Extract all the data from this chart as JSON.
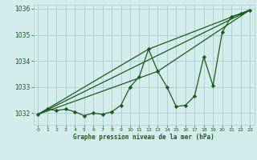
{
  "title": "Graphe pression niveau de la mer (hPa)",
  "bg_color": "#d4ecec",
  "grid_color": "#aacece",
  "line_color": "#1a5c1a",
  "marker_color": "#1a5c1a",
  "xlim": [
    -0.5,
    23.5
  ],
  "ylim": [
    1031.55,
    1036.15
  ],
  "yticks": [
    1032,
    1033,
    1034,
    1035,
    1036
  ],
  "xticks": [
    0,
    1,
    2,
    3,
    4,
    5,
    6,
    7,
    8,
    9,
    10,
    11,
    12,
    13,
    14,
    15,
    16,
    17,
    18,
    19,
    20,
    21,
    22,
    23
  ],
  "series1": {
    "x": [
      0,
      1,
      2,
      3,
      4,
      5,
      6,
      7,
      8,
      9,
      10,
      11,
      12,
      13,
      14,
      15,
      16,
      17,
      18,
      19,
      20,
      21,
      22,
      23
    ],
    "y": [
      1031.95,
      1032.15,
      1032.1,
      1032.15,
      1032.05,
      1031.9,
      1032.0,
      1031.95,
      1032.05,
      1032.3,
      1033.0,
      1033.4,
      1034.45,
      1033.6,
      1033.0,
      1032.25,
      1032.3,
      1032.65,
      1034.15,
      1033.05,
      1035.1,
      1035.7,
      1035.8,
      1035.95
    ]
  },
  "series2": {
    "x": [
      0,
      23
    ],
    "y": [
      1031.95,
      1035.95
    ]
  },
  "series3": {
    "x": [
      0,
      12,
      23
    ],
    "y": [
      1031.95,
      1034.45,
      1035.95
    ]
  },
  "series4": {
    "x": [
      0,
      13,
      23
    ],
    "y": [
      1031.95,
      1033.6,
      1035.95
    ]
  }
}
